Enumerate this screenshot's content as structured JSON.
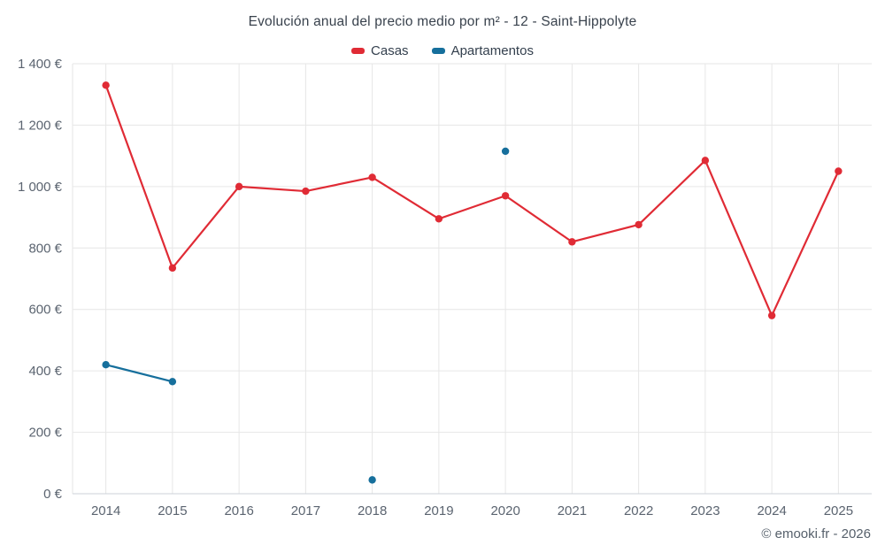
{
  "title": "Evolución anual del precio medio por m² - 12 - Saint-Hippolyte",
  "legend": [
    {
      "label": "Casas",
      "color": "#e02b35"
    },
    {
      "label": "Apartamentos",
      "color": "#166f9c"
    }
  ],
  "footer": "© emooki.fr - 2026",
  "colors": {
    "grid": "#e6e6e6",
    "axis": "#ccd2d8",
    "tick_text": "#5b6470"
  },
  "chart_data": {
    "type": "line",
    "categories": [
      "2014",
      "2015",
      "2016",
      "2017",
      "2018",
      "2019",
      "2020",
      "2021",
      "2022",
      "2023",
      "2024",
      "2025"
    ],
    "series": [
      {
        "name": "Casas",
        "color": "#e02b35",
        "values": [
          1330,
          735,
          1000,
          985,
          1030,
          895,
          970,
          820,
          876,
          1085,
          580,
          1050
        ]
      },
      {
        "name": "Apartamentos",
        "color": "#166f9c",
        "values": [
          420,
          365,
          null,
          null,
          45,
          null,
          1115,
          null,
          null,
          null,
          null,
          null
        ]
      }
    ],
    "title": "Evolución anual del precio medio por m² - 12 - Saint-Hippolyte",
    "xlabel": "",
    "ylabel": "",
    "ylim": [
      0,
      1400
    ],
    "ytick_step": 200,
    "ytick_suffix": " €",
    "grid": true,
    "legend_position": "top"
  }
}
